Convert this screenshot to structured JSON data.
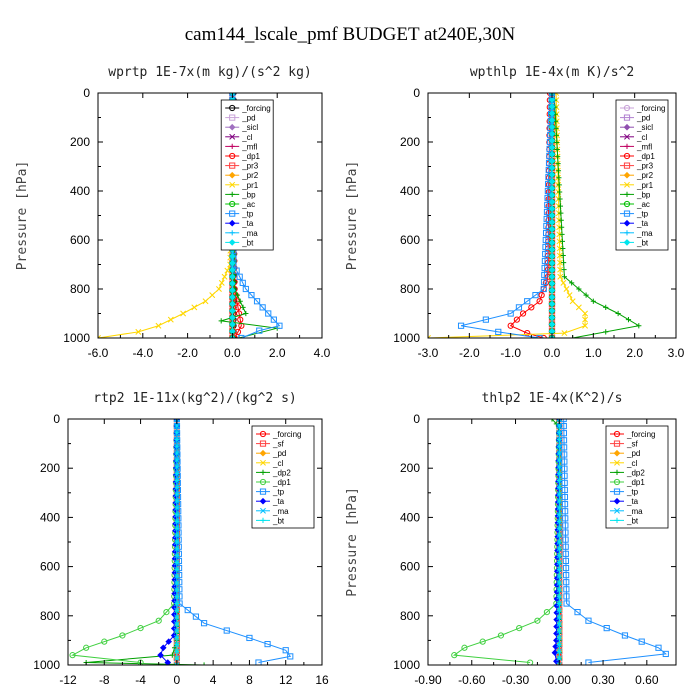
{
  "figure": {
    "title": "cam144_lscale_pmf  BUDGET at240E,30N"
  },
  "chart_data": [
    {
      "type": "line",
      "title": "wprtp  1E-7x(m kg)/(s^2 kg)",
      "ylabel": "Pressure [hPa]",
      "xlim": [
        -6,
        4
      ],
      "ylim": [
        1000,
        0
      ],
      "xticks": [
        "-6.0",
        "-4.0",
        "-2.0",
        "0.0",
        "2.0",
        "4.0"
      ],
      "yticks": [
        "0",
        "200",
        "400",
        "600",
        "800",
        "1000"
      ],
      "legend": "upper-right",
      "series": [
        {
          "name": "_forcing",
          "color": "#000000",
          "p": [
            0,
            200,
            400,
            600,
            800,
            900,
            1000
          ],
          "x": [
            0.05,
            0.05,
            0.05,
            0.05,
            0.05,
            0.05,
            0.05
          ]
        },
        {
          "name": "_pd",
          "color": "#c8a2d8",
          "p": [
            0,
            500,
            1000
          ],
          "x": [
            0,
            0,
            0
          ]
        },
        {
          "name": "_sicl",
          "color": "#a070c0",
          "p": [
            0,
            500,
            1000
          ],
          "x": [
            0,
            0,
            0
          ]
        },
        {
          "name": "_cl",
          "color": "#800080",
          "p": [
            0,
            500,
            1000
          ],
          "x": [
            0,
            0,
            0
          ]
        },
        {
          "name": "_mfl",
          "color": "#c00060",
          "p": [
            0,
            500,
            1000
          ],
          "x": [
            0,
            0,
            0
          ]
        },
        {
          "name": "_dp1",
          "color": "#ff0000",
          "p": [
            0,
            800,
            900,
            950,
            1000
          ],
          "x": [
            0,
            0.1,
            0.3,
            0.4,
            0.1
          ]
        },
        {
          "name": "_pr3",
          "color": "#ff4040",
          "p": [
            0,
            500,
            1000
          ],
          "x": [
            0,
            0,
            0
          ]
        },
        {
          "name": "_pr2",
          "color": "#ffa500",
          "p": [
            0,
            500,
            1000
          ],
          "x": [
            0,
            0,
            0
          ]
        },
        {
          "name": "_pr1",
          "color": "#ffd700",
          "p": [
            0,
            700,
            800,
            850,
            900,
            950,
            975,
            1000
          ],
          "x": [
            0,
            -0.1,
            -0.6,
            -1.2,
            -2.2,
            -3.3,
            -4.2,
            -6.0
          ]
        },
        {
          "name": "_bp",
          "color": "#00a000",
          "p": [
            0,
            800,
            900,
            930,
            960,
            1000
          ],
          "x": [
            0,
            0.1,
            0.6,
            -0.5,
            2.0,
            0.3
          ]
        },
        {
          "name": "_ac",
          "color": "#00c000",
          "p": [
            0,
            500,
            1000
          ],
          "x": [
            0,
            0,
            0
          ]
        },
        {
          "name": "_tp",
          "color": "#1e90ff",
          "p": [
            0,
            700,
            800,
            900,
            950,
            970,
            1000
          ],
          "x": [
            0,
            0.05,
            0.6,
            1.6,
            2.1,
            1.2,
            0.4
          ]
        },
        {
          "name": "_ta",
          "color": "#0000ff",
          "p": [
            0,
            500,
            1000
          ],
          "x": [
            0,
            0,
            0
          ]
        },
        {
          "name": "_ma",
          "color": "#00bfff",
          "p": [
            0,
            500,
            1000
          ],
          "x": [
            0,
            0,
            0
          ]
        },
        {
          "name": "_bt",
          "color": "#00e5ee",
          "p": [
            0,
            500,
            1000
          ],
          "x": [
            0,
            0,
            0
          ]
        }
      ]
    },
    {
      "type": "line",
      "title": "wpthlp  1E-4x(m K)/s^2",
      "ylabel": "Pressure [hPa]",
      "xlim": [
        -3,
        3
      ],
      "ylim": [
        1000,
        0
      ],
      "xticks": [
        "-3.0",
        "-2.0",
        "-1.0",
        "0.0",
        "1.0",
        "2.0",
        "3.0"
      ],
      "yticks": [
        "0",
        "200",
        "400",
        "600",
        "800",
        "1000"
      ],
      "legend": "upper-right",
      "series": [
        {
          "name": "_forcing",
          "color": "#c8a2d8",
          "p": [
            0,
            500,
            1000
          ],
          "x": [
            0,
            0,
            0
          ]
        },
        {
          "name": "_pd",
          "color": "#b080d0",
          "p": [
            0,
            500,
            1000
          ],
          "x": [
            0,
            0,
            0
          ]
        },
        {
          "name": "_sicl",
          "color": "#9050b0",
          "p": [
            0,
            500,
            1000
          ],
          "x": [
            0,
            0,
            0
          ]
        },
        {
          "name": "_cl",
          "color": "#800080",
          "p": [
            0,
            500,
            1000
          ],
          "x": [
            0,
            0,
            0
          ]
        },
        {
          "name": "_mfl",
          "color": "#c00060",
          "p": [
            0,
            500,
            1000
          ],
          "x": [
            0,
            0,
            0
          ]
        },
        {
          "name": "_dp1",
          "color": "#ff0000",
          "p": [
            0,
            750,
            850,
            900,
            950,
            980,
            1000
          ],
          "x": [
            -0.05,
            -0.1,
            -0.3,
            -0.7,
            -1.0,
            -0.6,
            -0.2
          ]
        },
        {
          "name": "_pr3",
          "color": "#ff4040",
          "p": [
            0,
            500,
            1000
          ],
          "x": [
            0,
            0,
            0
          ]
        },
        {
          "name": "_pr2",
          "color": "#ffa500",
          "p": [
            0,
            500,
            1000
          ],
          "x": [
            0,
            0,
            0
          ]
        },
        {
          "name": "_pr1",
          "color": "#ffd700",
          "p": [
            0,
            750,
            850,
            900,
            950,
            980,
            1000
          ],
          "x": [
            0.1,
            0.2,
            0.5,
            0.8,
            0.8,
            0.3,
            -3.0
          ]
        },
        {
          "name": "_bp",
          "color": "#00a000",
          "p": [
            0,
            750,
            850,
            900,
            950,
            1000
          ],
          "x": [
            0.05,
            0.3,
            1.0,
            1.6,
            2.1,
            0.5
          ]
        },
        {
          "name": "_ac",
          "color": "#00c000",
          "p": [
            0,
            500,
            1000
          ],
          "x": [
            0,
            0,
            0
          ]
        },
        {
          "name": "_tp",
          "color": "#1e90ff",
          "p": [
            0,
            800,
            900,
            950,
            975,
            1000
          ],
          "x": [
            0,
            -0.2,
            -1.0,
            -2.2,
            -1.3,
            -0.3
          ]
        },
        {
          "name": "_ta",
          "color": "#0000ff",
          "p": [
            0,
            500,
            1000
          ],
          "x": [
            0,
            0,
            0
          ]
        },
        {
          "name": "_ma",
          "color": "#00bfff",
          "p": [
            0,
            500,
            1000
          ],
          "x": [
            0,
            0,
            0
          ]
        },
        {
          "name": "_bt",
          "color": "#00e5ee",
          "p": [
            0,
            500,
            1000
          ],
          "x": [
            0,
            0,
            0
          ]
        }
      ]
    },
    {
      "type": "line",
      "title": "rtp2  1E-11x(kg^2)/(kg^2 s)",
      "ylabel": "Pressure [hPa]",
      "xlim": [
        -12,
        16
      ],
      "ylim": [
        1000,
        0
      ],
      "xticks": [
        "-12",
        "-8",
        "-4",
        "0",
        "4",
        "8",
        "12",
        "16"
      ],
      "yticks": [
        "0",
        "200",
        "400",
        "600",
        "800",
        "1000"
      ],
      "legend": "upper-right",
      "series": [
        {
          "name": "_forcing",
          "color": "#ff0000",
          "p": [
            0,
            200,
            400,
            600,
            800,
            900,
            1000
          ],
          "x": [
            0,
            0,
            0,
            0,
            0,
            0,
            0
          ]
        },
        {
          "name": "_sf",
          "color": "#ff4040",
          "p": [
            0,
            500,
            1000
          ],
          "x": [
            0,
            0,
            0
          ]
        },
        {
          "name": "_pd",
          "color": "#ffa500",
          "p": [
            0,
            500,
            1000
          ],
          "x": [
            0,
            0,
            0
          ]
        },
        {
          "name": "_cl",
          "color": "#ffd700",
          "p": [
            0,
            500,
            1000
          ],
          "x": [
            0,
            0,
            0
          ]
        },
        {
          "name": "_dp2",
          "color": "#00a000",
          "p": [
            0,
            900,
            960,
            990,
            1000
          ],
          "x": [
            0,
            0,
            -0.5,
            -10,
            3
          ]
        },
        {
          "name": "_dp1",
          "color": "#40d040",
          "p": [
            0,
            750,
            820,
            880,
            930,
            960,
            990
          ],
          "x": [
            0,
            -0.3,
            -2.0,
            -6.0,
            -10.0,
            -11.5,
            -4
          ]
        },
        {
          "name": "_tp",
          "color": "#1e90ff",
          "p": [
            0,
            750,
            830,
            890,
            940,
            965,
            990
          ],
          "x": [
            0,
            0.3,
            3.0,
            8.0,
            12.0,
            12.5,
            9.0
          ]
        },
        {
          "name": "_ta",
          "color": "#0000ff",
          "p": [
            0,
            880,
            930,
            960,
            990
          ],
          "x": [
            0,
            -0.3,
            -1.5,
            -1.8,
            -1.0
          ]
        },
        {
          "name": "_ma",
          "color": "#00bfff",
          "p": [
            0,
            500,
            1000
          ],
          "x": [
            0,
            0,
            0
          ]
        },
        {
          "name": "_bt",
          "color": "#00e5ee",
          "p": [
            0,
            500,
            1000
          ],
          "x": [
            0,
            0,
            0
          ]
        }
      ]
    },
    {
      "type": "line",
      "title": "thlp2  1E-4x(K^2)/s",
      "ylabel": "Pressure [hPa]",
      "xlim": [
        -0.9,
        0.8
      ],
      "ylim": [
        1000,
        0
      ],
      "xticks": [
        "-0.90",
        "-0.60",
        "-0.30",
        "0.00",
        "0.30",
        "0.60"
      ],
      "yticks": [
        "0",
        "200",
        "400",
        "600",
        "800",
        "1000"
      ],
      "legend": "upper-right",
      "series": [
        {
          "name": "_forcing",
          "color": "#ff0000",
          "p": [
            0,
            200,
            400,
            600,
            800,
            900,
            1000
          ],
          "x": [
            0,
            0,
            0,
            0,
            0,
            0,
            0
          ]
        },
        {
          "name": "_sf",
          "color": "#ff4040",
          "p": [
            0,
            500,
            1000
          ],
          "x": [
            0,
            0,
            0
          ]
        },
        {
          "name": "_pd",
          "color": "#ffa500",
          "p": [
            0,
            500,
            1000
          ],
          "x": [
            0,
            0,
            0
          ]
        },
        {
          "name": "_cl",
          "color": "#ffd700",
          "p": [
            0,
            500,
            1000
          ],
          "x": [
            0,
            0,
            0
          ]
        },
        {
          "name": "_dp2",
          "color": "#00a000",
          "p": [
            0,
            20,
            50,
            900,
            1000
          ],
          "x": [
            -0.05,
            -0.02,
            0,
            0,
            0
          ]
        },
        {
          "name": "_dp1",
          "color": "#40d040",
          "p": [
            0,
            750,
            820,
            880,
            930,
            960,
            990
          ],
          "x": [
            0,
            -0.02,
            -0.15,
            -0.4,
            -0.65,
            -0.72,
            -0.2
          ]
        },
        {
          "name": "_tp",
          "color": "#1e90ff",
          "p": [
            0,
            750,
            820,
            880,
            930,
            955,
            990
          ],
          "x": [
            0.03,
            0.05,
            0.2,
            0.45,
            0.68,
            0.73,
            0.2
          ]
        },
        {
          "name": "_ta",
          "color": "#0000ff",
          "p": [
            0,
            900,
            950,
            985
          ],
          "x": [
            0,
            -0.02,
            -0.03,
            -0.02
          ]
        },
        {
          "name": "_ma",
          "color": "#00bfff",
          "p": [
            0,
            500,
            1000
          ],
          "x": [
            0,
            0,
            0
          ]
        },
        {
          "name": "_bt",
          "color": "#00e5ee",
          "p": [
            0,
            500,
            1000
          ],
          "x": [
            0,
            0,
            0
          ]
        }
      ]
    }
  ]
}
